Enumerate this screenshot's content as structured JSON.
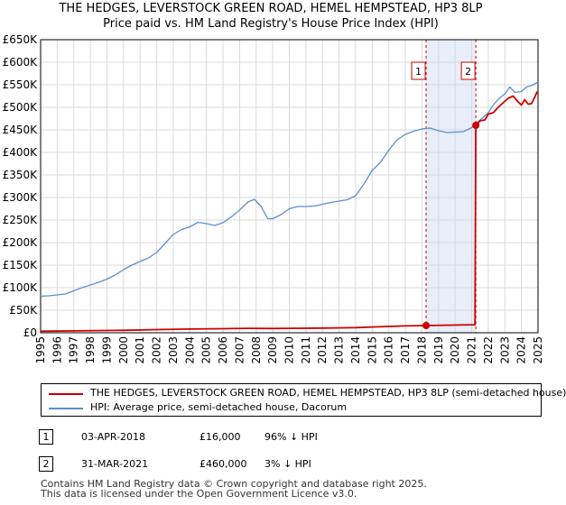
{
  "chart_data": {
    "type": "line",
    "title": "THE HEDGES, LEVERSTOCK GREEN ROAD, HEMEL HEMPSTEAD, HP3 8LP",
    "subtitle": "Price paid vs. HM Land Registry's House Price Index (HPI)",
    "xlim": [
      1995,
      2025
    ],
    "ylim": [
      0,
      650000
    ],
    "y_ticks": [
      {
        "value": 0,
        "label": "£0"
      },
      {
        "value": 50000,
        "label": "£50K"
      },
      {
        "value": 100000,
        "label": "£100K"
      },
      {
        "value": 150000,
        "label": "£150K"
      },
      {
        "value": 200000,
        "label": "£200K"
      },
      {
        "value": 250000,
        "label": "£250K"
      },
      {
        "value": 300000,
        "label": "£300K"
      },
      {
        "value": 350000,
        "label": "£350K"
      },
      {
        "value": 400000,
        "label": "£400K"
      },
      {
        "value": 450000,
        "label": "£450K"
      },
      {
        "value": 500000,
        "label": "£500K"
      },
      {
        "value": 550000,
        "label": "£550K"
      },
      {
        "value": 600000,
        "label": "£600K"
      },
      {
        "value": 650000,
        "label": "£650K"
      }
    ],
    "x_ticks": [
      "1995",
      "1996",
      "1997",
      "1998",
      "1999",
      "2000",
      "2001",
      "2002",
      "2003",
      "2004",
      "2005",
      "2006",
      "2007",
      "2008",
      "2009",
      "2010",
      "2011",
      "2012",
      "2013",
      "2014",
      "2015",
      "2016",
      "2017",
      "2018",
      "2019",
      "2020",
      "2021",
      "2022",
      "2023",
      "2024",
      "2025"
    ],
    "grid": true,
    "shaded_span": [
      2018.25,
      2021.25
    ],
    "series": [
      {
        "name": "THE HEDGES, LEVERSTOCK GREEN ROAD, HEMEL HEMPSTEAD, HP3 8LP (semi-detached house)",
        "color": "#cc0000",
        "x": [
          1995.0,
          1997.0,
          2000.0,
          2002.0,
          2004.0,
          2006.0,
          2007.5,
          2009.0,
          2010.0,
          2012.0,
          2014.0,
          2015.0,
          2016.0,
          2017.0,
          2018.25,
          2021.2,
          2021.25,
          2021.5,
          2021.8,
          2022.0,
          2022.3,
          2022.6,
          2022.9,
          2023.2,
          2023.5,
          2023.8,
          2024.0,
          2024.2,
          2024.4,
          2024.6,
          2024.8,
          2024.95
        ],
        "y": [
          3500,
          4200,
          5500,
          7000,
          8300,
          9000,
          9800,
          9500,
          9900,
          10500,
          11500,
          12800,
          14000,
          15300,
          16000,
          17800,
          460000,
          470000,
          472000,
          485000,
          488000,
          500000,
          510000,
          520000,
          525000,
          512000,
          505000,
          517000,
          507000,
          508000,
          522000,
          535000
        ]
      },
      {
        "name": "HPI: Average price, semi-detached house, Dacorum",
        "color": "#5b8fd0",
        "x": [
          1995.0,
          1995.5,
          1996.0,
          1996.5,
          1997.0,
          1997.5,
          1998.0,
          1998.5,
          1999.0,
          1999.5,
          2000.0,
          2000.5,
          2001.0,
          2001.5,
          2002.0,
          2002.5,
          2003.0,
          2003.5,
          2004.0,
          2004.5,
          2005.0,
          2005.5,
          2006.0,
          2006.5,
          2007.0,
          2007.5,
          2007.9,
          2008.3,
          2008.7,
          2009.0,
          2009.5,
          2010.0,
          2010.5,
          2011.0,
          2011.5,
          2012.0,
          2012.5,
          2013.0,
          2013.5,
          2014.0,
          2014.5,
          2015.0,
          2015.5,
          2016.0,
          2016.5,
          2017.0,
          2017.5,
          2018.0,
          2018.5,
          2019.0,
          2019.5,
          2020.0,
          2020.5,
          2021.0,
          2021.3,
          2021.6,
          2022.0,
          2022.3,
          2022.6,
          2023.0,
          2023.3,
          2023.6,
          2024.0,
          2024.3,
          2024.6,
          2024.95
        ],
        "y": [
          81000,
          82000,
          84000,
          86000,
          93000,
          100000,
          106000,
          112000,
          119000,
          128000,
          140000,
          150000,
          158000,
          166000,
          178000,
          198000,
          218000,
          229000,
          235000,
          245000,
          242000,
          238000,
          244000,
          257000,
          272000,
          290000,
          296000,
          280000,
          253000,
          253000,
          262000,
          275000,
          280000,
          280000,
          281000,
          285000,
          289000,
          292000,
          295000,
          304000,
          330000,
          360000,
          378000,
          405000,
          428000,
          440000,
          447000,
          452000,
          454000,
          448000,
          444000,
          445000,
          446000,
          455000,
          465000,
          475000,
          488000,
          505000,
          518000,
          530000,
          545000,
          533000,
          535000,
          545000,
          548000,
          555000
        ]
      }
    ],
    "sales": [
      {
        "label": "1",
        "x": 2018.25,
        "y": 16000
      },
      {
        "label": "2",
        "x": 2021.25,
        "y": 460000
      }
    ]
  },
  "legend": {
    "red_label": "THE HEDGES, LEVERSTOCK GREEN ROAD, HEMEL HEMPSTEAD, HP3 8LP (semi-detached house)",
    "blue_label": "HPI: Average price, semi-detached house, Dacorum"
  },
  "sales_table": [
    {
      "num": "1",
      "date": "03-APR-2018",
      "price": "£16,000",
      "hpi": "96% ↓ HPI"
    },
    {
      "num": "2",
      "date": "31-MAR-2021",
      "price": "£460,000",
      "hpi": "3% ↓ HPI"
    }
  ],
  "footer": {
    "line1": "Contains HM Land Registry data © Crown copyright and database right 2025.",
    "line2": "This data is licensed under the Open Government Licence v3.0."
  }
}
